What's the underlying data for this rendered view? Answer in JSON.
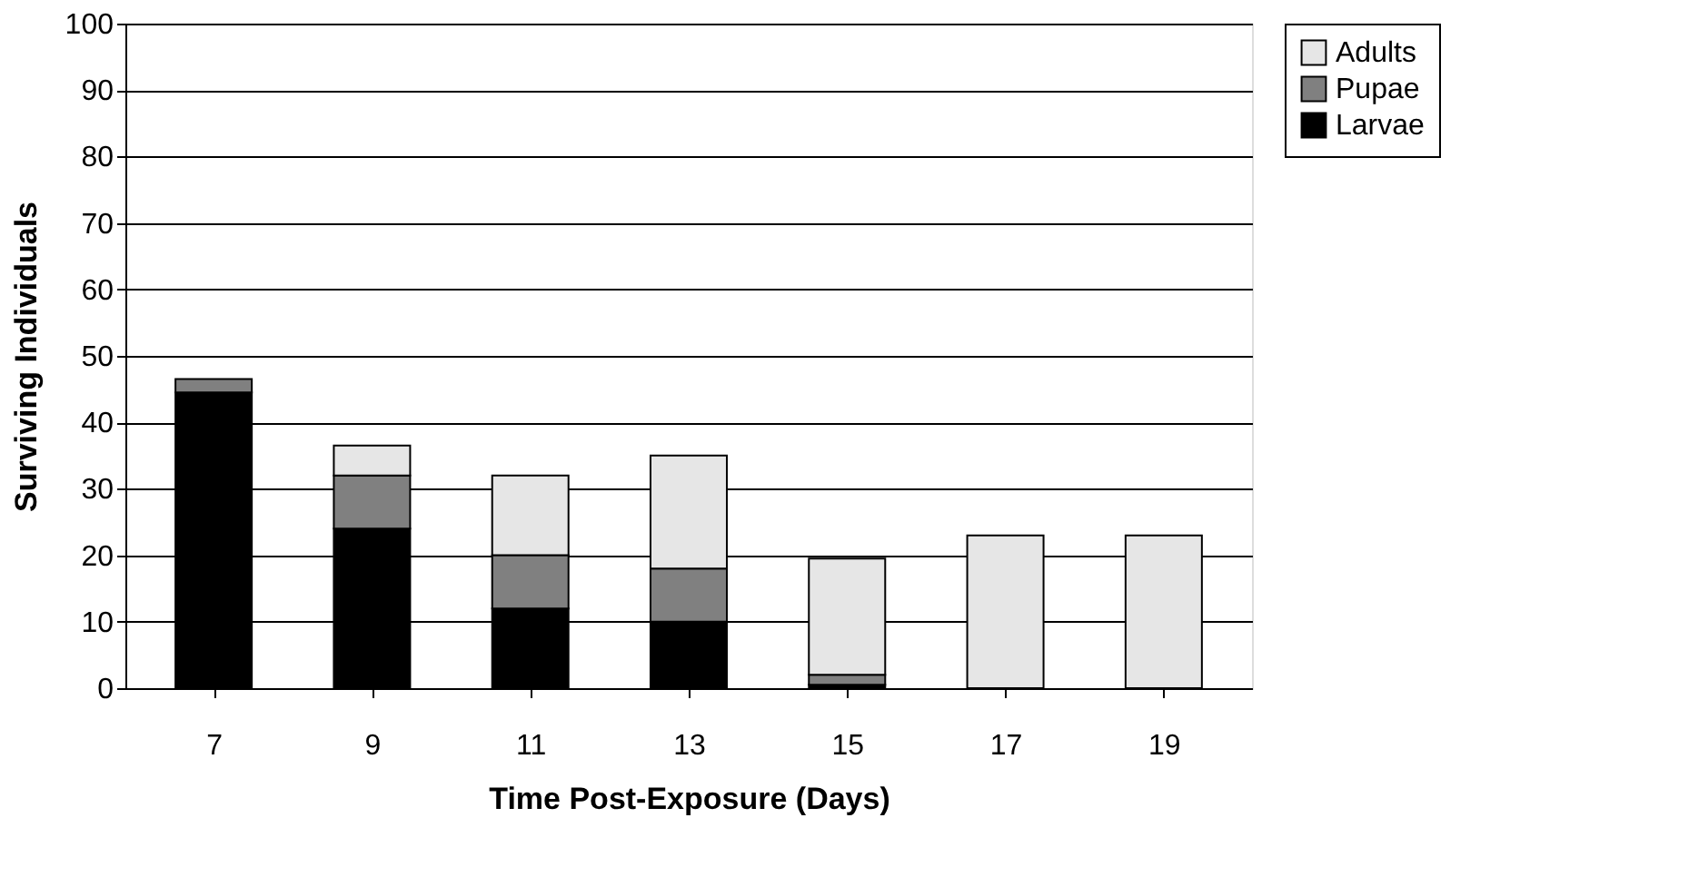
{
  "chart_data": {
    "type": "bar",
    "stacked": true,
    "xlabel": "Time Post-Exposure (Days)",
    "ylabel": "Surviving Individuals",
    "categories": [
      "7",
      "9",
      "11",
      "13",
      "15",
      "17",
      "19"
    ],
    "series": [
      {
        "name": "Larvae",
        "color": "#000000",
        "values": [
          44.5,
          24,
          12,
          10,
          0.5,
          null,
          null
        ]
      },
      {
        "name": "Pupae",
        "color": "#808080",
        "values": [
          2,
          8,
          8,
          8,
          1.5,
          null,
          null
        ]
      },
      {
        "name": "Adults",
        "color": "#e6e6e6",
        "values": [
          null,
          4.5,
          12,
          17,
          17.5,
          23,
          23
        ]
      }
    ],
    "ylim": [
      0,
      100
    ],
    "yticks": [
      0,
      10,
      20,
      30,
      40,
      50,
      60,
      70,
      80,
      90,
      100
    ],
    "grid": "y",
    "legend": "right"
  }
}
